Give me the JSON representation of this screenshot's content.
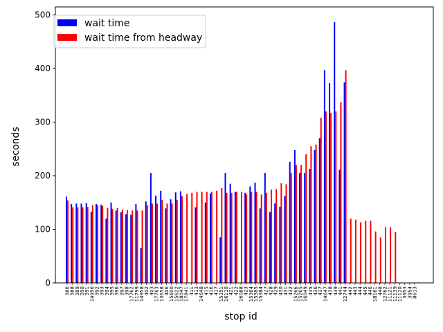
{
  "chart_data": {
    "type": "bar",
    "title": "",
    "xlabel": "stop id",
    "ylabel": "seconds",
    "ylim": [
      0,
      515
    ],
    "yticks": [
      0,
      100,
      200,
      300,
      400,
      500
    ],
    "grid": false,
    "legend_position": "upper-left",
    "categories": [
      "386",
      "388",
      "389",
      "390",
      "391",
      "14956",
      "392",
      "393",
      "394",
      "395",
      "396",
      "397",
      "398",
      "17762",
      "11799",
      "14958",
      "402",
      "403",
      "17763",
      "13658",
      "406",
      "15600",
      "15622",
      "18047",
      "17841",
      "411",
      "413",
      "14648",
      "415",
      "416",
      "417",
      "15351",
      "16110",
      "421",
      "422",
      "16088",
      "423",
      "15364",
      "15385",
      "15384",
      "427",
      "428",
      "429",
      "430",
      "431",
      "432",
      "15266",
      "15265",
      "16049",
      "435",
      "436",
      "437",
      "14647",
      "438",
      "439",
      "441",
      "12744",
      "442",
      "443",
      "444",
      "445",
      "446",
      "18161",
      "448",
      "12762",
      "11121",
      "11139",
      "11120",
      "3953",
      "3954",
      "8613"
    ],
    "series": [
      {
        "name": "wait time",
        "color": "#0000ff",
        "values": [
          161,
          147,
          148,
          148,
          149,
          133,
          147,
          146,
          120,
          150,
          135,
          132,
          128,
          127,
          147,
          65,
          152,
          205,
          163,
          172,
          139,
          156,
          169,
          171,
          null,
          null,
          141,
          null,
          150,
          167,
          null,
          85,
          205,
          185,
          170,
          null,
          168,
          180,
          187,
          139,
          205,
          132,
          148,
          142,
          162,
          226,
          248,
          205,
          205,
          213,
          248,
          270,
          397,
          373,
          487,
          211,
          374,
          null,
          null,
          null,
          null,
          null,
          null,
          null,
          null,
          null,
          null,
          null,
          null,
          null,
          null
        ]
      },
      {
        "name": "wait time from headway",
        "color": "#ff0000",
        "values": [
          154,
          141,
          141,
          141,
          142,
          145,
          145,
          144,
          140,
          138,
          140,
          137,
          136,
          135,
          135,
          135,
          145,
          148,
          148,
          155,
          148,
          148,
          155,
          162,
          166,
          168,
          170,
          170,
          170,
          170,
          172,
          177,
          168,
          168,
          170,
          170,
          165,
          170,
          170,
          165,
          168,
          174,
          175,
          186,
          184,
          205,
          220,
          220,
          240,
          255,
          258,
          308,
          320,
          317,
          320,
          337,
          397,
          120,
          118,
          113,
          116,
          116,
          96,
          85,
          104,
          104,
          95,
          null,
          null,
          null,
          null
        ]
      }
    ]
  }
}
